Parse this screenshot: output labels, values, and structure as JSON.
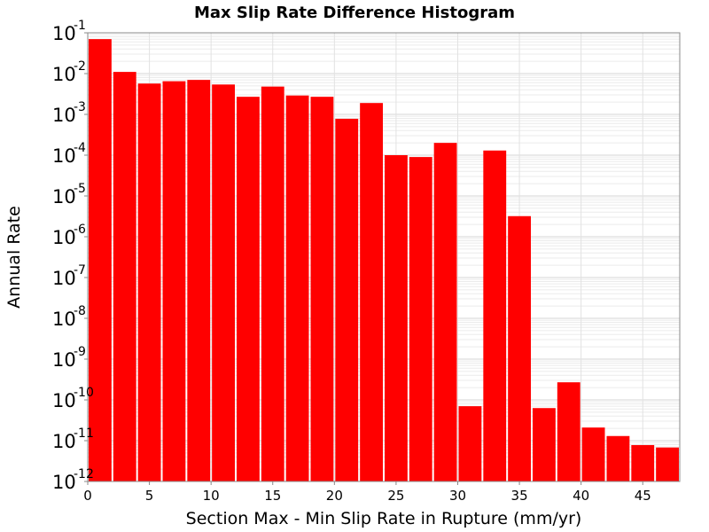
{
  "chart_data": {
    "type": "bar",
    "title": "Max Slip Rate Difference Histogram",
    "xlabel": "Section Max - Min Slip Rate in Rupture (mm/yr)",
    "ylabel": "Annual Rate",
    "y_scale": "log",
    "xlim": [
      0,
      48
    ],
    "ylim": [
      1e-12,
      0.1
    ],
    "bin_width": 2,
    "grid": true,
    "bar_color": "#ff0000",
    "x_ticks": [
      "0",
      "5",
      "10",
      "15",
      "20",
      "25",
      "30",
      "35",
      "40",
      "45"
    ],
    "y_ticks": [
      {
        "base": "10",
        "exp": "-1"
      },
      {
        "base": "10",
        "exp": "-2"
      },
      {
        "base": "10",
        "exp": "-3"
      },
      {
        "base": "10",
        "exp": "-4"
      },
      {
        "base": "10",
        "exp": "-5"
      },
      {
        "base": "10",
        "exp": "-6"
      },
      {
        "base": "10",
        "exp": "-7"
      },
      {
        "base": "10",
        "exp": "-8"
      },
      {
        "base": "10",
        "exp": "-9"
      },
      {
        "base": "10",
        "exp": "-10"
      },
      {
        "base": "10",
        "exp": "-11"
      },
      {
        "base": "10",
        "exp": "-12"
      }
    ],
    "bins": [
      {
        "x": 1,
        "value": 0.07
      },
      {
        "x": 3,
        "value": 0.011
      },
      {
        "x": 5,
        "value": 0.0057
      },
      {
        "x": 7,
        "value": 0.0065
      },
      {
        "x": 9,
        "value": 0.007
      },
      {
        "x": 11,
        "value": 0.0054
      },
      {
        "x": 13,
        "value": 0.0027
      },
      {
        "x": 15,
        "value": 0.0048
      },
      {
        "x": 17,
        "value": 0.0029
      },
      {
        "x": 19,
        "value": 0.0027
      },
      {
        "x": 21,
        "value": 0.00078
      },
      {
        "x": 23,
        "value": 0.0019
      },
      {
        "x": 25,
        "value": 0.0001
      },
      {
        "x": 27,
        "value": 9e-05
      },
      {
        "x": 29,
        "value": 0.0002
      },
      {
        "x": 31,
        "value": 7e-11
      },
      {
        "x": 33,
        "value": 0.00013
      },
      {
        "x": 35,
        "value": 3.2e-06
      },
      {
        "x": 37,
        "value": 6.3e-11
      },
      {
        "x": 39,
        "value": 2.7e-10
      },
      {
        "x": 41,
        "value": 2.1e-11
      },
      {
        "x": 43,
        "value": 1.3e-11
      },
      {
        "x": 45,
        "value": 7.8e-12
      },
      {
        "x": 47,
        "value": 6.8e-12
      }
    ]
  }
}
